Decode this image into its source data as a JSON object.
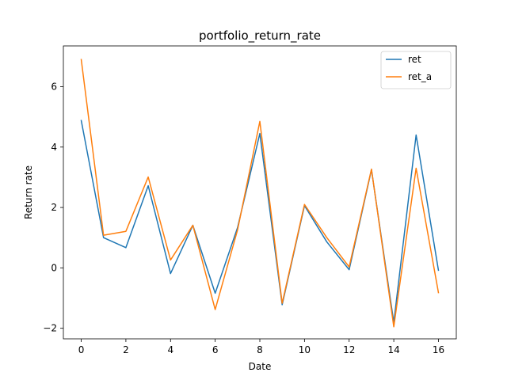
{
  "chart_data": {
    "type": "line",
    "title": "portfolio_return_rate",
    "xlabel": "Date",
    "ylabel": "Return rate",
    "xlim": [
      -0.8,
      16.8
    ],
    "ylim": [
      -2.35,
      7.35
    ],
    "xticks": [
      0,
      2,
      4,
      6,
      8,
      10,
      12,
      14,
      16
    ],
    "yticks": [
      -2,
      0,
      2,
      4,
      6
    ],
    "grid": false,
    "legend_placement": "top-right",
    "x": [
      0,
      1,
      2,
      3,
      4,
      5,
      6,
      7,
      8,
      9,
      10,
      11,
      12,
      13,
      14,
      15,
      16
    ],
    "series": [
      {
        "name": "ret",
        "color": "#1f77b4",
        "values": [
          4.88,
          1.0,
          0.67,
          2.72,
          -0.19,
          1.41,
          -0.84,
          1.33,
          4.45,
          -1.22,
          2.06,
          0.86,
          -0.06,
          3.25,
          -1.81,
          4.4,
          -0.08
        ]
      },
      {
        "name": "ret_a",
        "color": "#ff7f0e",
        "values": [
          6.9,
          1.08,
          1.21,
          3.01,
          0.26,
          1.41,
          -1.38,
          1.25,
          4.85,
          -1.17,
          2.1,
          1.0,
          0.03,
          3.27,
          -1.95,
          3.3,
          -0.82
        ]
      }
    ]
  }
}
